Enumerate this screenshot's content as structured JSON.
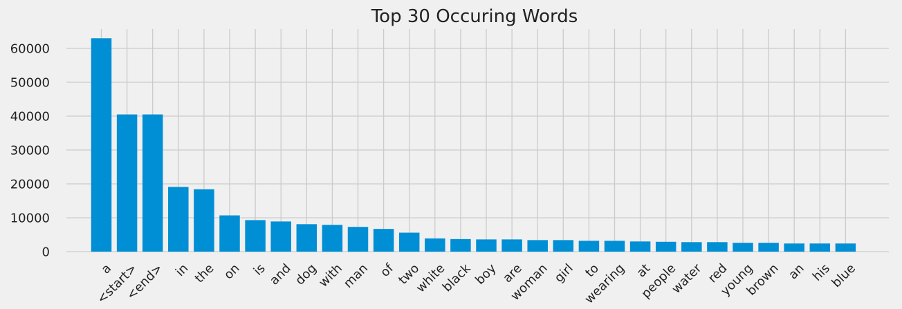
{
  "chart_data": {
    "type": "bar",
    "title": "Top 30 Occuring Words",
    "xlabel": "",
    "ylabel": "",
    "categories": [
      "a",
      "<start>",
      "<end>",
      "in",
      "the",
      "on",
      "is",
      "and",
      "dog",
      "with",
      "man",
      "of",
      "two",
      "white",
      "black",
      "boy",
      "are",
      "woman",
      "girl",
      "to",
      "wearing",
      "at",
      "people",
      "water",
      "red",
      "young",
      "brown",
      "an",
      "his",
      "blue"
    ],
    "values": [
      63000,
      40500,
      40500,
      19100,
      18400,
      10700,
      9300,
      8900,
      8100,
      7900,
      7300,
      6700,
      5600,
      3900,
      3700,
      3600,
      3600,
      3400,
      3400,
      3200,
      3200,
      3000,
      2900,
      2800,
      2800,
      2600,
      2600,
      2400,
      2400,
      2400
    ],
    "ylim": [
      0,
      66000
    ],
    "yticks": [
      0,
      10000,
      20000,
      30000,
      40000,
      50000,
      60000
    ],
    "ytick_labels": [
      "0",
      "10000",
      "20000",
      "30000",
      "40000",
      "50000",
      "60000"
    ],
    "xtick_rotation": 45,
    "grid": true,
    "bar_color": "#008fd5",
    "grid_color": "#cbcbcb",
    "background": "#f0f0f0"
  }
}
